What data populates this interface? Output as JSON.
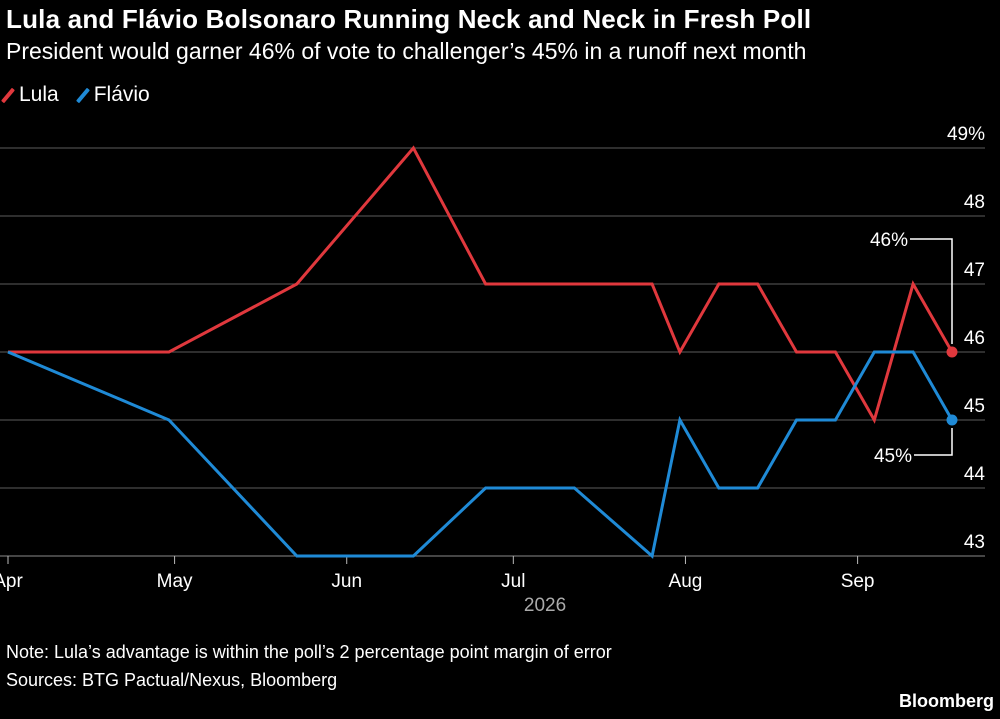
{
  "chart_data": {
    "type": "line",
    "title": "Lula and Flávio Bolsonaro Running Neck and Neck in Fresh Poll",
    "subtitle": "President would garner 46% of vote to challenger’s 45% in a runoff next month",
    "x": [
      "2026-04-01",
      "2026-04-30",
      "2026-05-23",
      "2026-06-13",
      "2026-06-26",
      "2026-07-12",
      "2026-07-26",
      "2026-07-31",
      "2026-08-07",
      "2026-08-14",
      "2026-08-21",
      "2026-08-28",
      "2026-09-04",
      "2026-09-11",
      "2026-09-18"
    ],
    "series": [
      {
        "name": "Lula",
        "color": "#e0383d",
        "values": [
          46,
          46,
          47,
          49,
          47,
          47,
          47,
          46,
          47,
          47,
          46,
          46,
          45,
          47,
          46
        ]
      },
      {
        "name": "Flávio",
        "color": "#1f8ad6",
        "values": [
          46,
          45,
          43,
          43,
          44,
          44,
          43,
          45,
          44,
          44,
          45,
          45,
          46,
          46,
          45
        ]
      }
    ],
    "x_ticks": [
      {
        "date": "2026-04-01",
        "label": "Apr"
      },
      {
        "date": "2026-05-01",
        "label": "May"
      },
      {
        "date": "2026-06-01",
        "label": "Jun"
      },
      {
        "date": "2026-07-01",
        "label": "Jul"
      },
      {
        "date": "2026-08-01",
        "label": "Aug"
      },
      {
        "date": "2026-09-01",
        "label": "Sep"
      }
    ],
    "year_label": "2026",
    "y_ticks": [
      {
        "value": 43,
        "label": "43"
      },
      {
        "value": 44,
        "label": "44"
      },
      {
        "value": 45,
        "label": "45"
      },
      {
        "value": 46,
        "label": "46"
      },
      {
        "value": 47,
        "label": "47"
      },
      {
        "value": 48,
        "label": "48"
      },
      {
        "value": 49,
        "label": "49%"
      }
    ],
    "ylim": [
      43,
      49
    ],
    "xlim": [
      "2026-04-01",
      "2026-09-18"
    ],
    "grid": true,
    "legend_position": "top-left",
    "annotations": [
      {
        "series": "Lula",
        "label": "46%"
      },
      {
        "series": "Flávio",
        "label": "45%"
      }
    ]
  },
  "note": "Note: Lula’s advantage is within the poll’s 2 percentage point margin of error",
  "sources": "Sources: BTG Pactual/Nexus, Bloomberg",
  "brand": "Bloomberg"
}
